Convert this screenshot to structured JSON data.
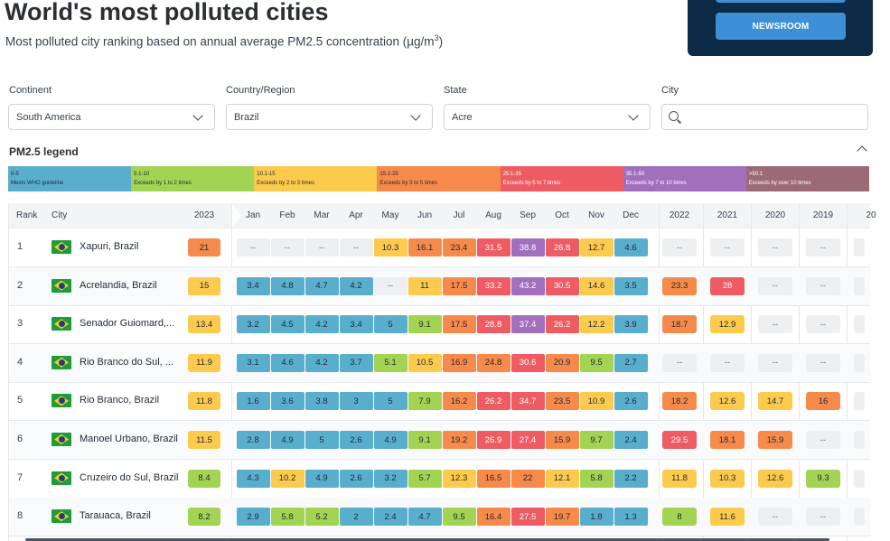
{
  "header": {
    "title": "World's most polluted cities",
    "subtitle_prefix": "Most polluted city ranking based on annual average PM2.5 concentration (µg/m",
    "subtitle_sup": "3",
    "subtitle_suffix": ")"
  },
  "newsroom": {
    "button_label": "NEWSROOM"
  },
  "filters": {
    "continent": {
      "label": "Continent",
      "value": "South America"
    },
    "country": {
      "label": "Country/Region",
      "value": "Brazil"
    },
    "state": {
      "label": "State",
      "value": "Acre"
    },
    "city": {
      "label": "City",
      "value": ""
    }
  },
  "legend": {
    "title": "PM2.5 legend",
    "items": [
      {
        "range": "0-5",
        "desc": "Meets WHO guideline",
        "color": "#5aaecd"
      },
      {
        "range": "5.1-10",
        "desc": "Exceeds by 1 to 2 times",
        "color": "#a3d353"
      },
      {
        "range": "10.1-15",
        "desc": "Exceeds by 2 to 3 times",
        "color": "#fcca4c"
      },
      {
        "range": "15.1-25",
        "desc": "Exceeds by 3 to 5 times",
        "color": "#f68a4a"
      },
      {
        "range": "25.1-35",
        "desc": "Exceeds by 5 to 7 times",
        "color": "#ee5b62"
      },
      {
        "range": "35.1-50",
        "desc": "Exceeds by 7 to 10 times",
        "color": "#a26fbd"
      },
      {
        "range": ">50.1",
        "desc": "Exceeds by over 10 times",
        "color": "#9c6a77"
      }
    ]
  },
  "table": {
    "headers": {
      "rank": "Rank",
      "city": "City",
      "y2023": "2023",
      "months": [
        "Jan",
        "Feb",
        "Mar",
        "Apr",
        "May",
        "Jun",
        "Jul",
        "Aug",
        "Sep",
        "Oct",
        "Nov",
        "Dec"
      ],
      "years": [
        "2022",
        "2021",
        "2020",
        "2019",
        "20"
      ]
    },
    "rows": [
      {
        "rank": "1",
        "city": "Xapuri, Brazil",
        "y2023": "21",
        "months": [
          "--",
          "--",
          "--",
          "--",
          "10.3",
          "16.1",
          "23.4",
          "31.5",
          "38.8",
          "26.8",
          "12.7",
          "4.6"
        ],
        "years": [
          "--",
          "--",
          "--",
          "--",
          ""
        ]
      },
      {
        "rank": "2",
        "city": "Acrelandia, Brazil",
        "y2023": "15",
        "months": [
          "3.4",
          "4.8",
          "4.7",
          "4.2",
          "--",
          "11",
          "17.5",
          "33.2",
          "43.2",
          "30.5",
          "14.6",
          "3.5"
        ],
        "years": [
          "23.3",
          "28",
          "--",
          "--",
          ""
        ]
      },
      {
        "rank": "3",
        "city": "Senador Guiomard,...",
        "y2023": "13.4",
        "months": [
          "3.2",
          "4.5",
          "4.2",
          "3.4",
          "5",
          "9.1",
          "17.5",
          "28.8",
          "37.4",
          "26.2",
          "12.2",
          "3.9"
        ],
        "years": [
          "18.7",
          "12.9",
          "--",
          "--",
          ""
        ]
      },
      {
        "rank": "4",
        "city": "Rio Branco do Sul, ...",
        "y2023": "11.9",
        "months": [
          "3.1",
          "4.6",
          "4.2",
          "3.7",
          "5.1",
          "10.5",
          "16.9",
          "24.8",
          "30.6",
          "20.9",
          "9.5",
          "2.7"
        ],
        "years": [
          "--",
          "--",
          "--",
          "--",
          ""
        ]
      },
      {
        "rank": "5",
        "city": "Rio Branco, Brazil",
        "y2023": "11.8",
        "months": [
          "1.6",
          "3.6",
          "3.8",
          "3",
          "5",
          "7.9",
          "16.2",
          "26.2",
          "34.7",
          "23.5",
          "10.9",
          "2.6"
        ],
        "years": [
          "18.2",
          "12.6",
          "14.7",
          "16",
          ""
        ]
      },
      {
        "rank": "6",
        "city": "Manoel Urbano, Brazil",
        "y2023": "11.5",
        "months": [
          "2.8",
          "4.9",
          "5",
          "2.6",
          "4.9",
          "9.1",
          "19.2",
          "26.9",
          "27.4",
          "15.9",
          "9.7",
          "2.4"
        ],
        "years": [
          "29.5",
          "18.1",
          "15.9",
          "--",
          ""
        ]
      },
      {
        "rank": "7",
        "city": "Cruzeiro do Sul, Brazil",
        "y2023": "8.4",
        "months": [
          "4.3",
          "10.2",
          "4.9",
          "2.6",
          "3.2",
          "5.7",
          "12.3",
          "16.5",
          "22",
          "12.1",
          "5.8",
          "2.2"
        ],
        "years": [
          "11.8",
          "10.3",
          "12.6",
          "9.3",
          ""
        ]
      },
      {
        "rank": "8",
        "city": "Tarauaca, Brazil",
        "y2023": "8.2",
        "months": [
          "2.9",
          "5.8",
          "5.2",
          "2",
          "2.4",
          "4.7",
          "9.5",
          "16.4",
          "27.5",
          "19.7",
          "1.8",
          "1.3"
        ],
        "years": [
          "8",
          "11.6",
          "--",
          "--",
          ""
        ]
      }
    ]
  }
}
